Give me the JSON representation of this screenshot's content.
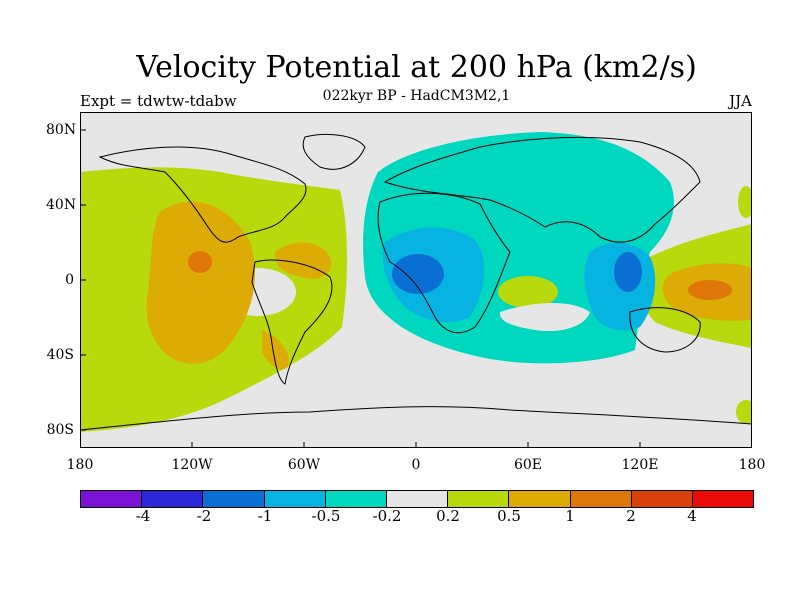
{
  "title": "Velocity Potential at 200 hPa (km2/s)",
  "subtitle": "022kyr BP - HadCM3M2,1",
  "expt": "Expt = tdwtw-tdabw",
  "season": "JJA",
  "lat_labels": [
    "80N",
    "40N",
    "0",
    "40S",
    "80S"
  ],
  "lon_labels": [
    "180",
    "120W",
    "60W",
    "0",
    "60E",
    "120E",
    "180"
  ],
  "colorbar": {
    "colors": [
      "#7a12d6",
      "#2a28d8",
      "#0a6fd2",
      "#07b3e0",
      "#00d7bf",
      "#e6e6e6",
      "#b8d90c",
      "#dcab05",
      "#de7708",
      "#d9410a",
      "#ea0a0a"
    ],
    "labels": [
      "-4",
      "-2",
      "-1",
      "-0.5",
      "-0.2",
      "0.2",
      "0.5",
      "1",
      "2",
      "4"
    ]
  }
}
